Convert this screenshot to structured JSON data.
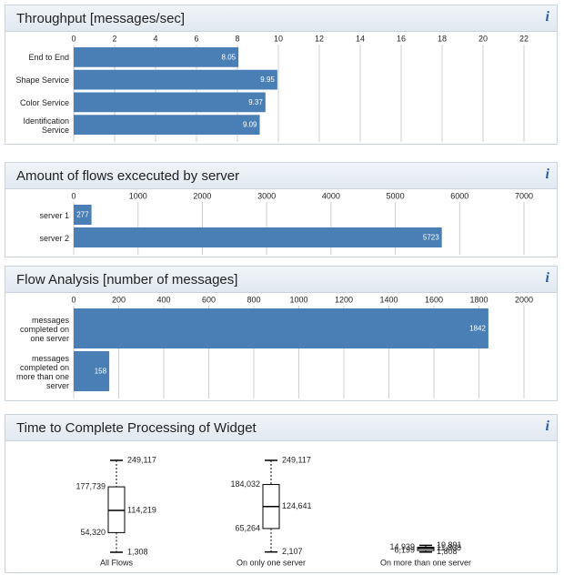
{
  "chart_data": [
    {
      "type": "bar",
      "title": "Throughput [messages/sec]",
      "info": "i",
      "categories": [
        "End to End",
        "Shape Service",
        "Color Service",
        "Identification Service"
      ],
      "values": [
        8.05,
        9.95,
        9.37,
        9.09
      ],
      "color": "#4a7fb5",
      "xlim": [
        0,
        22
      ],
      "xticks": [
        0,
        2,
        4,
        6,
        8,
        10,
        12,
        14,
        16,
        18,
        20,
        22
      ],
      "grid": true
    },
    {
      "type": "bar",
      "title": "Amount of flows excecuted by server",
      "info": "i",
      "categories": [
        "server 1",
        "server 2"
      ],
      "values": [
        277,
        5723
      ],
      "color": "#4a7fb5",
      "xlim": [
        0,
        7000
      ],
      "xticks": [
        0,
        1000,
        2000,
        3000,
        4000,
        5000,
        6000,
        7000
      ],
      "grid": true
    },
    {
      "type": "bar",
      "title": "Flow Analysis [number of messages]",
      "info": "i",
      "categories": [
        "messages completed on one server",
        "messages completed on more than one server"
      ],
      "values": [
        1842,
        158
      ],
      "color": "#4a7fb5",
      "xlim": [
        0,
        2000
      ],
      "xticks": [
        0,
        200,
        400,
        600,
        800,
        1000,
        1200,
        1400,
        1600,
        1800,
        2000
      ],
      "grid": true
    },
    {
      "type": "box",
      "title": "Time to Complete Processing of Widget",
      "info": "i",
      "boxes": [
        {
          "name": "All Flows",
          "min": 1308,
          "q1": 54320,
          "median": 114219,
          "q3": 177739,
          "max": 249117,
          "value_labels": {
            "min": "1,308",
            "q1": "54,320",
            "median": "114,219",
            "q3": "177,739",
            "max": "249,117"
          }
        },
        {
          "name": "On only one server",
          "min": 2107,
          "q1": 65264,
          "median": 124641,
          "q3": 184032,
          "max": 249117,
          "value_labels": {
            "min": "2,107",
            "q1": "65,264",
            "median": "124,641",
            "q3": "184,032",
            "max": "249,117"
          }
        },
        {
          "name": "On more than one server",
          "min": 1808,
          "q1": 6199,
          "median": 11808,
          "q3": 14939,
          "max": 19891,
          "value_labels": {
            "min": "1,808",
            "q1": "6,199",
            "median": "11,808",
            "q3": "14,939",
            "max": "19,891"
          }
        }
      ]
    }
  ]
}
